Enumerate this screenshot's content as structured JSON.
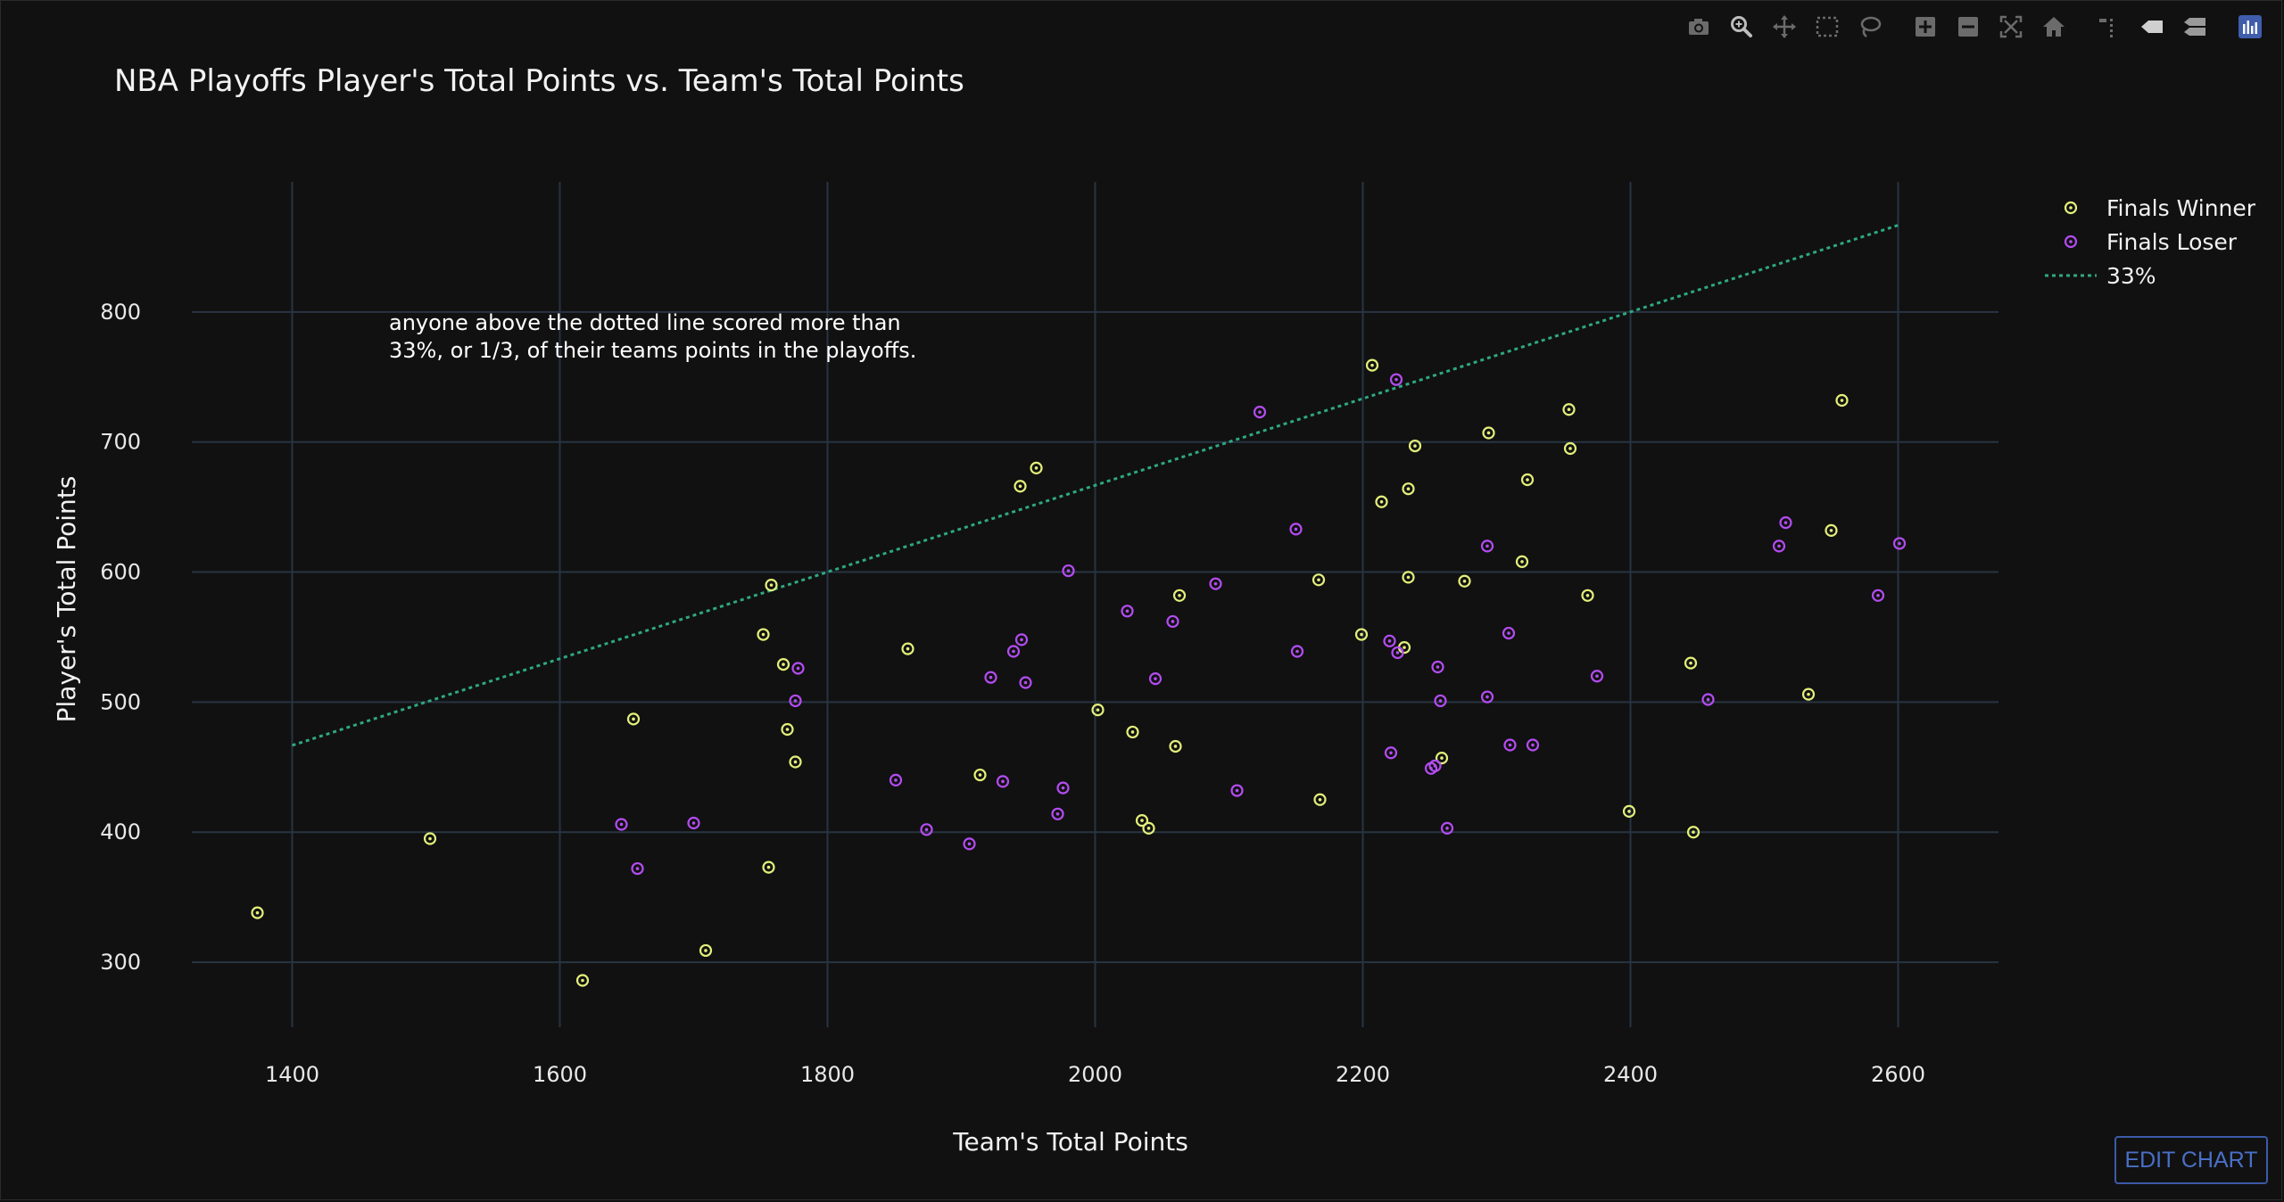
{
  "modebar": {
    "buttons": [
      {
        "name": "camera-icon",
        "group": 0
      },
      {
        "name": "zoom-icon",
        "group": 0
      },
      {
        "name": "pan-icon",
        "group": 0
      },
      {
        "name": "box-select-icon",
        "group": 0
      },
      {
        "name": "lasso-select-icon",
        "group": 0
      },
      {
        "name": "zoom-in-icon",
        "group": 1
      },
      {
        "name": "zoom-out-icon",
        "group": 1
      },
      {
        "name": "autoscale-icon",
        "group": 1
      },
      {
        "name": "home-icon",
        "group": 1
      },
      {
        "name": "spike-lines-icon",
        "group": 2
      },
      {
        "name": "hover-closest-icon",
        "group": 2
      },
      {
        "name": "hover-compare-icon",
        "group": 2
      },
      {
        "name": "plotly-logo-icon",
        "group": 3
      }
    ]
  },
  "edit_chart_label": "EDIT CHART",
  "chart_data": {
    "type": "scatter",
    "title": "NBA Playoffs Player's Total Points vs. Team's Total Points",
    "xlabel": "Team's Total Points",
    "ylabel": "Player's Total Points",
    "xlim": [
      1325,
      2675
    ],
    "ylim": [
      250,
      900
    ],
    "xticks": [
      1400,
      1600,
      1800,
      2000,
      2200,
      2400,
      2600
    ],
    "yticks": [
      300,
      400,
      500,
      600,
      700,
      800
    ],
    "grid": true,
    "legend_position": "top-right",
    "annotation": [
      "anyone above the dotted line scored more than",
      "33%, or 1/3, of their teams points in the playoffs."
    ],
    "series": [
      {
        "name": "Finals Winner",
        "color": "#e3ef7a",
        "marker": "circle-dot",
        "points": [
          [
            1374,
            338
          ],
          [
            1503,
            395
          ],
          [
            1617,
            286
          ],
          [
            1655,
            487
          ],
          [
            1709,
            309
          ],
          [
            1752,
            552
          ],
          [
            1756,
            373
          ],
          [
            1758,
            590
          ],
          [
            1767,
            529
          ],
          [
            1770,
            479
          ],
          [
            1776,
            454
          ],
          [
            1860,
            541
          ],
          [
            1914,
            444
          ],
          [
            1944,
            666
          ],
          [
            1956,
            680
          ],
          [
            2002,
            494
          ],
          [
            2028,
            477
          ],
          [
            2035,
            409
          ],
          [
            2040,
            403
          ],
          [
            2060,
            466
          ],
          [
            2063,
            582
          ],
          [
            2167,
            594
          ],
          [
            2168,
            425
          ],
          [
            2199,
            552
          ],
          [
            2207,
            759
          ],
          [
            2214,
            654
          ],
          [
            2231,
            542
          ],
          [
            2234,
            664
          ],
          [
            2234,
            596
          ],
          [
            2239,
            697
          ],
          [
            2259,
            457
          ],
          [
            2276,
            593
          ],
          [
            2294,
            707
          ],
          [
            2319,
            608
          ],
          [
            2323,
            671
          ],
          [
            2354,
            725
          ],
          [
            2355,
            695
          ],
          [
            2368,
            582
          ],
          [
            2399,
            416
          ],
          [
            2445,
            530
          ],
          [
            2447,
            400
          ],
          [
            2533,
            506
          ],
          [
            2550,
            632
          ],
          [
            2558,
            732
          ]
        ]
      },
      {
        "name": "Finals Loser",
        "color": "#b44cf2",
        "marker": "circle-dot",
        "points": [
          [
            1646,
            406
          ],
          [
            1658,
            372
          ],
          [
            1700,
            407
          ],
          [
            1776,
            501
          ],
          [
            1778,
            526
          ],
          [
            1851,
            440
          ],
          [
            1874,
            402
          ],
          [
            1906,
            391
          ],
          [
            1922,
            519
          ],
          [
            1931,
            439
          ],
          [
            1939,
            539
          ],
          [
            1945,
            548
          ],
          [
            1948,
            515
          ],
          [
            1972,
            414
          ],
          [
            1976,
            434
          ],
          [
            1980,
            601
          ],
          [
            2024,
            570
          ],
          [
            2045,
            518
          ],
          [
            2058,
            562
          ],
          [
            2090,
            591
          ],
          [
            2106,
            432
          ],
          [
            2123,
            723
          ],
          [
            2150,
            633
          ],
          [
            2151,
            539
          ],
          [
            2220,
            547
          ],
          [
            2221,
            461
          ],
          [
            2226,
            538
          ],
          [
            2225,
            748
          ],
          [
            2251,
            449
          ],
          [
            2254,
            451
          ],
          [
            2256,
            527
          ],
          [
            2258,
            501
          ],
          [
            2263,
            403
          ],
          [
            2293,
            620
          ],
          [
            2293,
            504
          ],
          [
            2309,
            553
          ],
          [
            2310,
            467
          ],
          [
            2327,
            467
          ],
          [
            2375,
            520
          ],
          [
            2458,
            502
          ],
          [
            2511,
            620
          ],
          [
            2516,
            638
          ],
          [
            2585,
            582
          ],
          [
            2601,
            622
          ]
        ]
      },
      {
        "name": "33%",
        "color": "#2ea882",
        "line": "dot",
        "points": [
          [
            1400,
            466.7
          ],
          [
            2600,
            866.7
          ]
        ]
      }
    ]
  }
}
